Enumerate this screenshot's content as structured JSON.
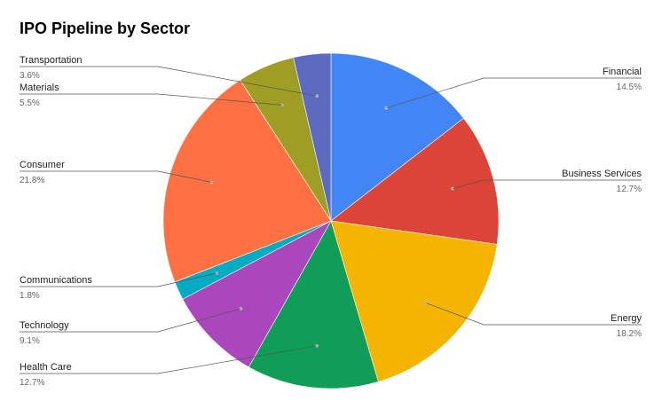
{
  "chart_data": {
    "type": "pie",
    "title": "IPO Pipeline by Sector",
    "slices": [
      {
        "label": "Financial",
        "value": 14.5,
        "value_label": "14.5%",
        "color": "#4285f4",
        "side": "right"
      },
      {
        "label": "Business Services",
        "value": 12.7,
        "value_label": "12.7%",
        "color": "#db4437",
        "side": "right"
      },
      {
        "label": "Energy",
        "value": 18.2,
        "value_label": "18.2%",
        "color": "#f4b400",
        "side": "right"
      },
      {
        "label": "Health Care",
        "value": 12.7,
        "value_label": "12.7%",
        "color": "#0f9d58",
        "side": "left"
      },
      {
        "label": "Technology",
        "value": 9.1,
        "value_label": "9.1%",
        "color": "#ab47bc",
        "side": "left"
      },
      {
        "label": "Communications",
        "value": 1.8,
        "value_label": "1.8%",
        "color": "#00acc1",
        "side": "left"
      },
      {
        "label": "Consumer",
        "value": 21.8,
        "value_label": "21.8%",
        "color": "#ff7043",
        "side": "left"
      },
      {
        "label": "Materials",
        "value": 5.5,
        "value_label": "5.5%",
        "color": "#9e9d24",
        "side": "left"
      },
      {
        "label": "Transportation",
        "value": 3.6,
        "value_label": "3.6%",
        "color": "#5c6bc0",
        "side": "left"
      }
    ],
    "legend": "labels-with-leader-lines"
  }
}
